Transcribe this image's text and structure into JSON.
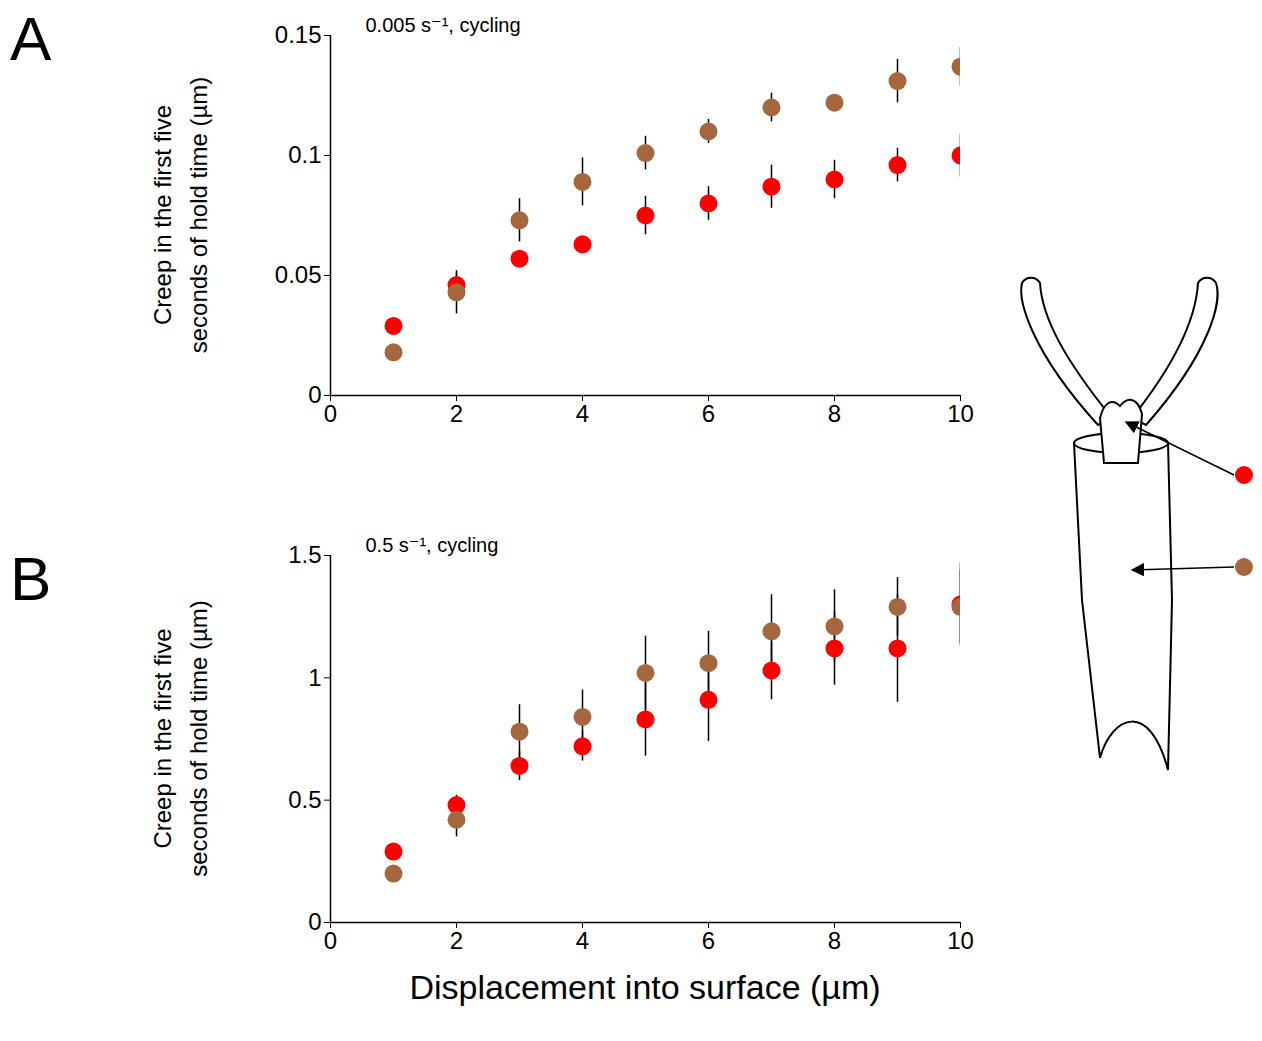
{
  "chart_data": [
    {
      "type": "scatter",
      "panel": "A",
      "annotation": "0.005 s⁻¹, cycling",
      "ylabel": "Creep in the first five seconds of hold time (µm)",
      "x": [
        1,
        2,
        3,
        4,
        5,
        6,
        7,
        8,
        9,
        10
      ],
      "xlim": [
        0,
        10
      ],
      "xticks": [
        0,
        2,
        4,
        6,
        8,
        10
      ],
      "ylim": [
        0,
        0.15
      ],
      "yticks": [
        0,
        0.05,
        0.1,
        0.15
      ],
      "series": [
        {
          "color": "#ff0000",
          "marker": "circle",
          "values": [
            0.029,
            0.046,
            0.057,
            0.063,
            0.075,
            0.08,
            0.087,
            0.09,
            0.096,
            0.1
          ],
          "errors": [
            0.002,
            0.005,
            0.003,
            0.003,
            0.008,
            0.007,
            0.009,
            0.008,
            0.007,
            0.009
          ]
        },
        {
          "color": "#a6673e",
          "marker": "circle",
          "values": [
            0.018,
            0.043,
            0.073,
            0.089,
            0.101,
            0.11,
            0.12,
            0.122,
            0.131,
            0.137
          ],
          "errors": [
            0.002,
            0.009,
            0.009,
            0.01,
            0.007,
            0.005,
            0.006,
            0.003,
            0.009,
            0.008
          ]
        }
      ]
    },
    {
      "type": "scatter",
      "panel": "B",
      "annotation": "0.5 s⁻¹, cycling",
      "ylabel": "Creep in the first five seconds of hold time (µm)",
      "xlabel": "Displacement into surface (µm)",
      "x": [
        1,
        2,
        3,
        4,
        5,
        6,
        7,
        8,
        9,
        10
      ],
      "xlim": [
        0,
        10
      ],
      "xticks": [
        0,
        2,
        4,
        6,
        8,
        10
      ],
      "ylim": [
        0,
        1.5
      ],
      "yticks": [
        0,
        0.5,
        1,
        1.5
      ],
      "series": [
        {
          "color": "#ff0000",
          "marker": "circle",
          "values": [
            0.29,
            0.48,
            0.64,
            0.72,
            0.83,
            0.91,
            1.03,
            1.12,
            1.12,
            1.3
          ],
          "errors": [
            0.02,
            0.04,
            0.06,
            0.06,
            0.15,
            0.17,
            0.12,
            0.15,
            0.22,
            0.17
          ]
        },
        {
          "color": "#a6673e",
          "marker": "circle",
          "values": [
            0.2,
            0.42,
            0.78,
            0.84,
            1.02,
            1.06,
            1.19,
            1.21,
            1.29,
            1.29
          ],
          "errors": [
            0.02,
            0.07,
            0.11,
            0.11,
            0.15,
            0.13,
            0.15,
            0.15,
            0.12,
            0.15
          ]
        }
      ]
    }
  ]
}
